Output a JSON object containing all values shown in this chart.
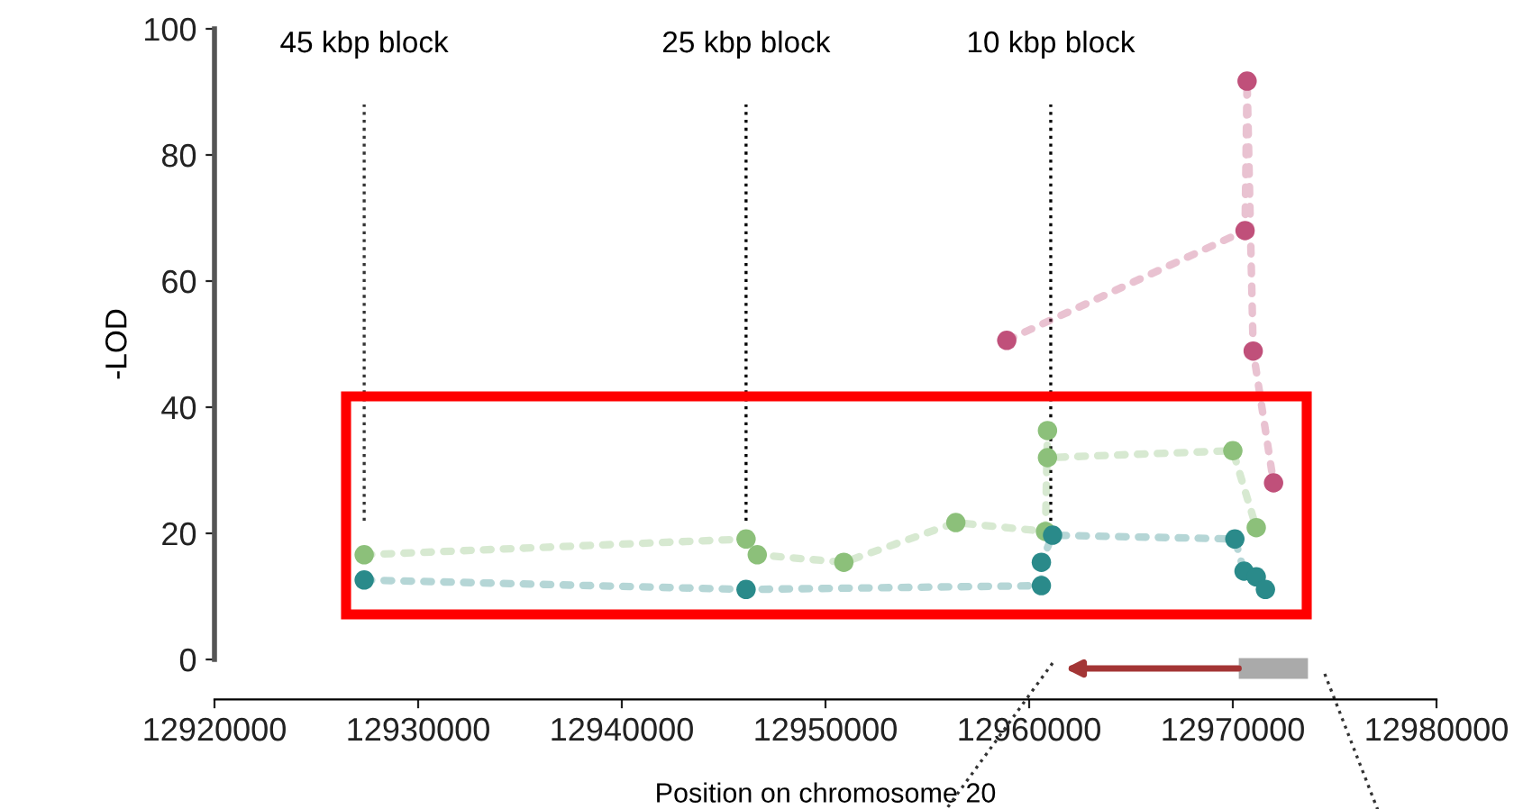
{
  "chart_data": {
    "type": "line",
    "xlabel": "Position on chromosome 20",
    "ylabel": "-LOD",
    "xlim": [
      12920000,
      12980000
    ],
    "xticks": [
      12920000,
      12930000,
      12940000,
      12950000,
      12960000,
      12970000,
      12980000
    ],
    "ylim": [
      0,
      100
    ],
    "yticks": [
      0,
      20,
      40,
      60,
      80,
      100
    ],
    "grid": false,
    "legend": false,
    "marker": "circle",
    "line_style": "dotted",
    "series": [
      {
        "color": "#c0507a",
        "x": [
          12958900,
          12970600,
          12970700,
          12971000,
          12972000
        ],
        "values": [
          50.6,
          68,
          91.7,
          48.9,
          28
        ]
      },
      {
        "color": "#8cc07a",
        "x": [
          12927350,
          12946100,
          12946650,
          12950900,
          12956400,
          12960800,
          12960900,
          12960900,
          12970000,
          12971150
        ],
        "values": [
          16.6,
          19.1,
          16.6,
          15.4,
          21.7,
          20.3,
          36.3,
          32,
          33.1,
          20.9
        ]
      },
      {
        "color": "#2a8a8a",
        "x": [
          12927350,
          12946100,
          12960600,
          12960600,
          12961150,
          12970100,
          12970550,
          12971150,
          12971600
        ],
        "values": [
          12.6,
          11.1,
          11.7,
          15.4,
          19.7,
          19.1,
          14,
          13.1,
          11.1
        ]
      }
    ],
    "ref_lines": [
      {
        "axis": "x",
        "value": 12927350,
        "label": "45 kbp block",
        "line_style": "dotted",
        "color": "#333333"
      },
      {
        "axis": "x",
        "value": 12946100,
        "label": "25 kbp block",
        "line_style": "dotted",
        "color": "#000000"
      },
      {
        "axis": "x",
        "value": 12961060,
        "label": "10 kbp block",
        "line_style": "dotted",
        "color": "#000000"
      }
    ]
  }
}
